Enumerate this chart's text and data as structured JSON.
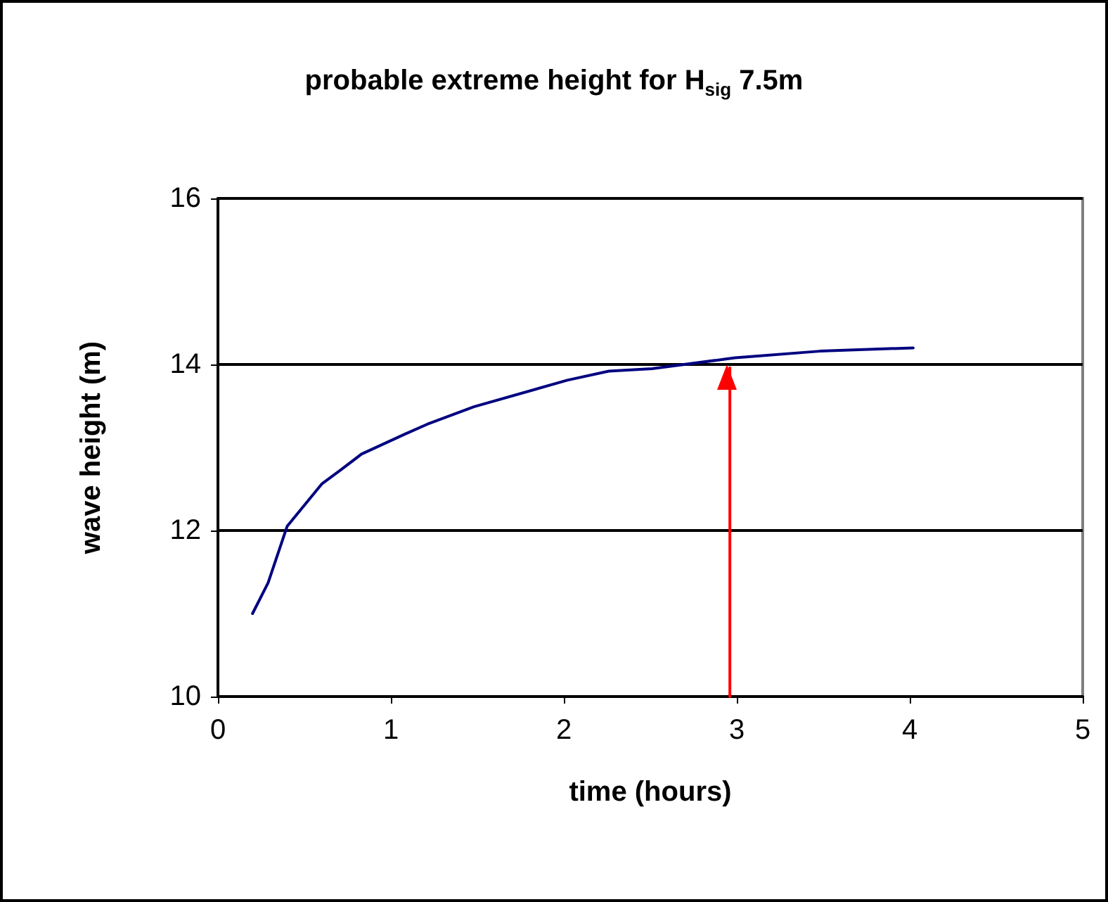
{
  "chart_data": {
    "type": "line",
    "title": "probable extreme height for H$_{sig}$ 7.5m",
    "xlabel": "time (hours)",
    "ylabel": "wave height (m)",
    "series": [
      {
        "color": "#000080",
        "x": [
          0.2,
          0.29,
          0.4,
          0.6,
          0.71,
          0.83,
          1.08,
          1.21,
          1.48,
          2.02,
          2.26,
          2.51,
          2.99,
          3.48,
          4.02
        ],
        "values": [
          11.0,
          11.37,
          12.05,
          12.56,
          12.73,
          12.92,
          13.16,
          13.28,
          13.49,
          13.81,
          13.92,
          13.95,
          14.08,
          14.16,
          14.2
        ]
      },
      {
        "color": "#ff0000",
        "x": [
          2.96,
          2.96
        ],
        "values": [
          10,
          13.96
        ]
      }
    ],
    "xlim": [
      0,
      5
    ],
    "xticks": [
      0,
      1,
      2,
      3,
      4,
      5
    ],
    "ylim": [
      10,
      16
    ],
    "yticks": [
      10,
      12,
      14,
      16
    ],
    "grid": "y",
    "marker": "none",
    "line_style": "solid"
  }
}
